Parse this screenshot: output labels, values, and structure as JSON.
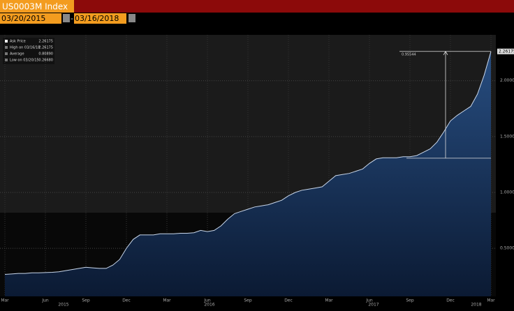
{
  "header": {
    "ticker": "US0003M Index",
    "start_date": "03/20/2015",
    "separator": "-",
    "end_date": "03/16/2018"
  },
  "chart_data": {
    "type": "area",
    "legend": [
      {
        "name": "Ask Price",
        "value": "2.26175"
      },
      {
        "name": "High on 03/16/18",
        "value": "2.26175"
      },
      {
        "name": "Average",
        "value": "0.80890"
      },
      {
        "name": "Low on 03/20/15",
        "value": "0.26680"
      }
    ],
    "categories": [
      "Mar",
      null,
      null,
      null,
      null,
      null,
      "Jun",
      null,
      null,
      null,
      null,
      null,
      "Sep",
      null,
      null,
      null,
      null,
      null,
      "Dec",
      null,
      null,
      null,
      null,
      null,
      "Mar",
      null,
      null,
      null,
      null,
      null,
      "Jun",
      null,
      null,
      null,
      null,
      null,
      "Sep",
      null,
      null,
      null,
      null,
      null,
      "Dec",
      null,
      null,
      null,
      null,
      null,
      "Mar",
      null,
      null,
      null,
      null,
      null,
      "Jun",
      null,
      null,
      null,
      null,
      null,
      "Sep",
      null,
      null,
      null,
      null,
      null,
      "Dec",
      null,
      null,
      null,
      null,
      null,
      "Mar"
    ],
    "years": [
      "2015",
      "2016",
      "2017",
      "2018"
    ],
    "series": [
      {
        "name": "Ask Price",
        "color": "#c8d6ea",
        "values": [
          0.2668,
          0.27,
          0.275,
          0.275,
          0.28,
          0.28,
          0.283,
          0.285,
          0.29,
          0.3,
          0.31,
          0.32,
          0.33,
          0.325,
          0.32,
          0.32,
          0.35,
          0.4,
          0.5,
          0.58,
          0.62,
          0.62,
          0.62,
          0.63,
          0.63,
          0.63,
          0.635,
          0.635,
          0.64,
          0.66,
          0.65,
          0.66,
          0.7,
          0.76,
          0.81,
          0.83,
          0.85,
          0.87,
          0.88,
          0.89,
          0.91,
          0.93,
          0.97,
          1.0,
          1.02,
          1.03,
          1.04,
          1.05,
          1.1,
          1.15,
          1.16,
          1.17,
          1.19,
          1.21,
          1.26,
          1.3,
          1.31,
          1.31,
          1.31,
          1.32,
          1.32,
          1.33,
          1.36,
          1.39,
          1.45,
          1.54,
          1.64,
          1.69,
          1.73,
          1.77,
          1.88,
          2.05,
          2.26175
        ]
      }
    ],
    "ylim": [
      0.07,
      2.41
    ],
    "yticks": [
      {
        "value": 0.5,
        "label": "0.50000"
      },
      {
        "value": 1,
        "label": "1.00000"
      },
      {
        "value": 1.5,
        "label": "1.50000"
      },
      {
        "value": 2,
        "label": "2.00000"
      }
    ],
    "reference": {
      "start": 1.30631,
      "end": 2.26175,
      "label": "0.95544"
    },
    "grid": true
  }
}
